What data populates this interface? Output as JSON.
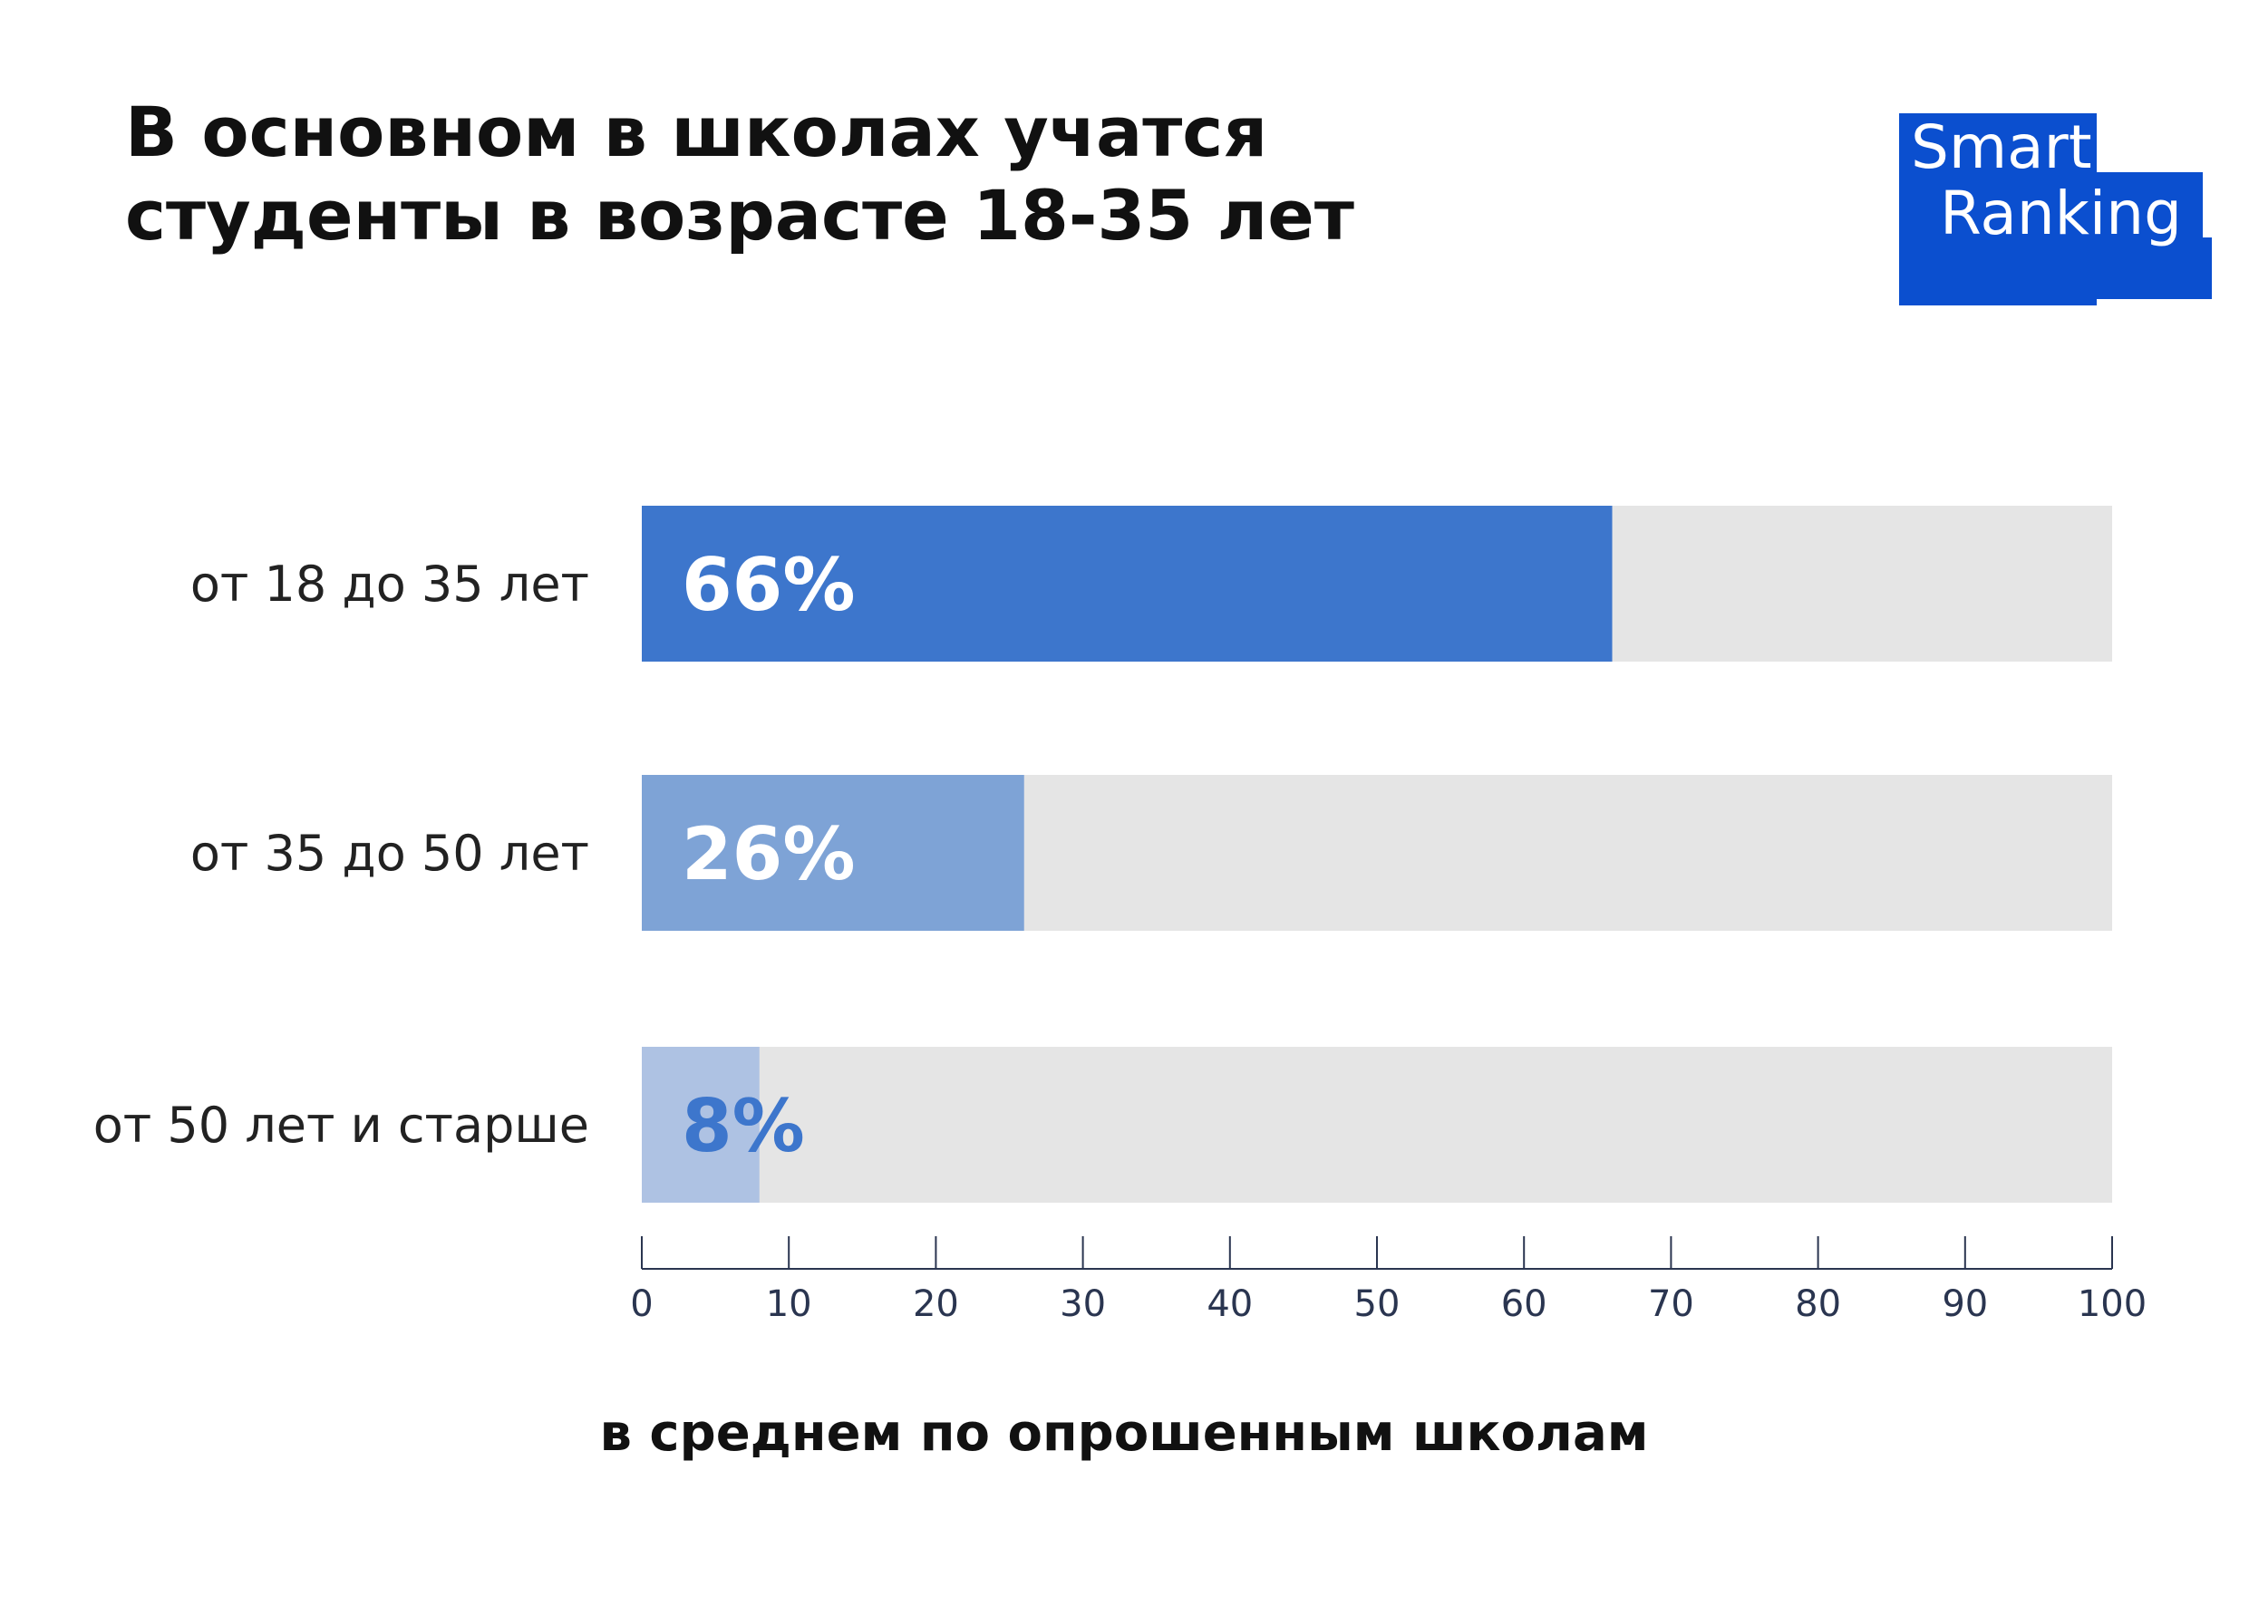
{
  "title_lines": [
    "В основном в школах учатся",
    "студенты в возрасте 18-35 лет"
  ],
  "logo": {
    "line1": "Smart",
    "line2": "Ranking",
    "color": "#0b4fcf"
  },
  "colors": {
    "track": "#e5e5e5",
    "bars": [
      "#3d76cc",
      "#7ea3d6",
      "#aec2e3"
    ],
    "value_labels": [
      "#ffffff",
      "#ffffff",
      "#3d76cc"
    ],
    "axis": "#2a3550"
  },
  "chart_data": {
    "type": "bar",
    "orientation": "horizontal",
    "categories": [
      "от 18 до 35 лет",
      "от 35 до 50 лет",
      "от 50 лет и старше"
    ],
    "values": [
      66,
      26,
      8
    ],
    "value_labels": [
      "66%",
      "26%",
      "8%"
    ],
    "xlim": [
      0,
      100
    ],
    "xticks": [
      0,
      10,
      20,
      30,
      40,
      50,
      60,
      70,
      80,
      90,
      100
    ],
    "xlabel": "в среднем по опрошенным школам",
    "grid": false
  }
}
